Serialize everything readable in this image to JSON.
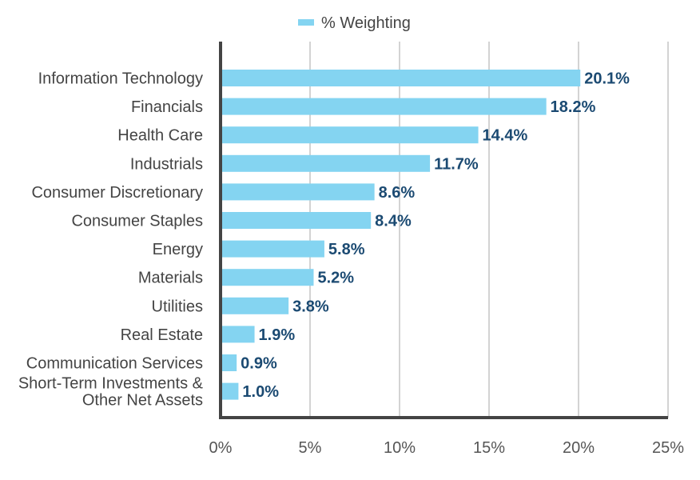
{
  "chart_data": {
    "type": "bar",
    "orientation": "horizontal",
    "categories": [
      "Information Technology",
      "Financials",
      "Health Care",
      "Industrials",
      "Consumer Discretionary",
      "Consumer Staples",
      "Energy",
      "Materials",
      "Utilities",
      "Real Estate",
      "Communication Services",
      "Short-Term Investments & Other Net Assets"
    ],
    "category_lines": [
      [
        "Information Technology"
      ],
      [
        "Financials"
      ],
      [
        "Health Care"
      ],
      [
        "Industrials"
      ],
      [
        "Consumer Discretionary"
      ],
      [
        "Consumer Staples"
      ],
      [
        "Energy"
      ],
      [
        "Materials"
      ],
      [
        "Utilities"
      ],
      [
        "Real Estate"
      ],
      [
        "Communication Services"
      ],
      [
        "Short-Term Investments &",
        "Other Net Assets"
      ]
    ],
    "series": [
      {
        "name": "% Weighting",
        "values": [
          20.1,
          18.2,
          14.4,
          11.7,
          8.6,
          8.4,
          5.8,
          5.2,
          3.8,
          1.9,
          0.9,
          1.0
        ],
        "labels": [
          "20.1%",
          "18.2%",
          "14.4%",
          "11.7%",
          "8.6%",
          "8.4%",
          "5.8%",
          "5.2%",
          "3.8%",
          "1.9%",
          "0.9%",
          "1.0%"
        ]
      }
    ],
    "xlim": [
      0,
      25
    ],
    "xticks": [
      0,
      5,
      10,
      15,
      20,
      25
    ],
    "xtick_labels": [
      "0%",
      "5%",
      "10%",
      "15%",
      "20%",
      "25%"
    ],
    "grid": "vertical",
    "legend_position": "top",
    "colors": {
      "bar": "#84d4f1",
      "value_label": "#1b4a72",
      "axis": "#444444",
      "grid": "#d3d3d3"
    }
  }
}
